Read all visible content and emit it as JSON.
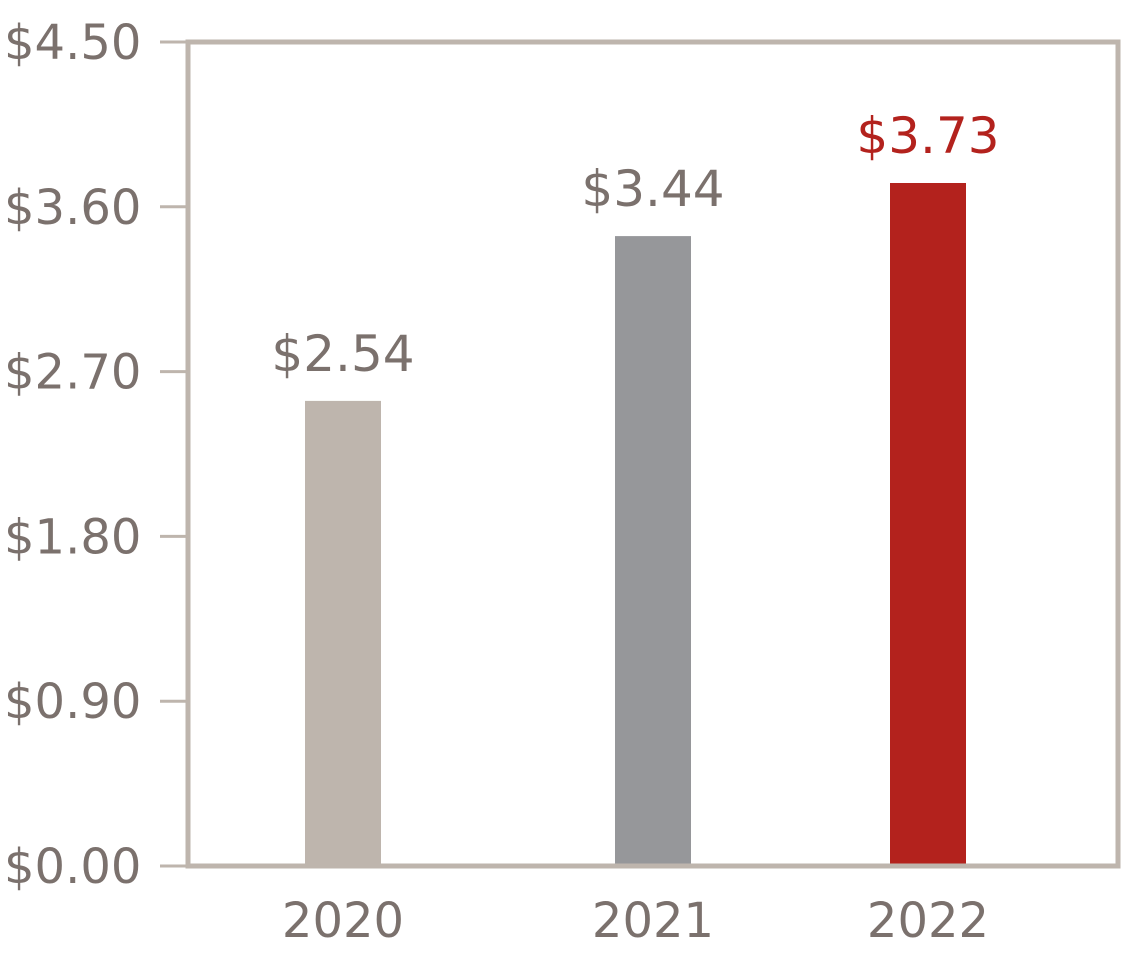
{
  "chart_data": {
    "type": "bar",
    "categories": [
      "2020",
      "2021",
      "2022"
    ],
    "values": [
      2.54,
      3.44,
      3.73
    ],
    "value_labels": [
      "$2.54",
      "$3.44",
      "$3.73"
    ],
    "bar_colors": [
      "#beb5ad",
      "#96979a",
      "#b3221d"
    ],
    "value_label_colors": [
      "#7b716d",
      "#7b716d",
      "#b3221d"
    ],
    "ylim": [
      0,
      4.5
    ],
    "yticks": [
      0,
      0.9,
      1.8,
      2.7,
      3.6,
      4.5
    ],
    "ytick_labels": [
      "$0.00",
      "$0.90",
      "$1.80",
      "$2.70",
      "$3.60",
      "$4.50"
    ],
    "title": "",
    "xlabel": "",
    "ylabel": "",
    "grid": false,
    "frame_color": "#beb5ad",
    "text_color": "#7b716d"
  }
}
